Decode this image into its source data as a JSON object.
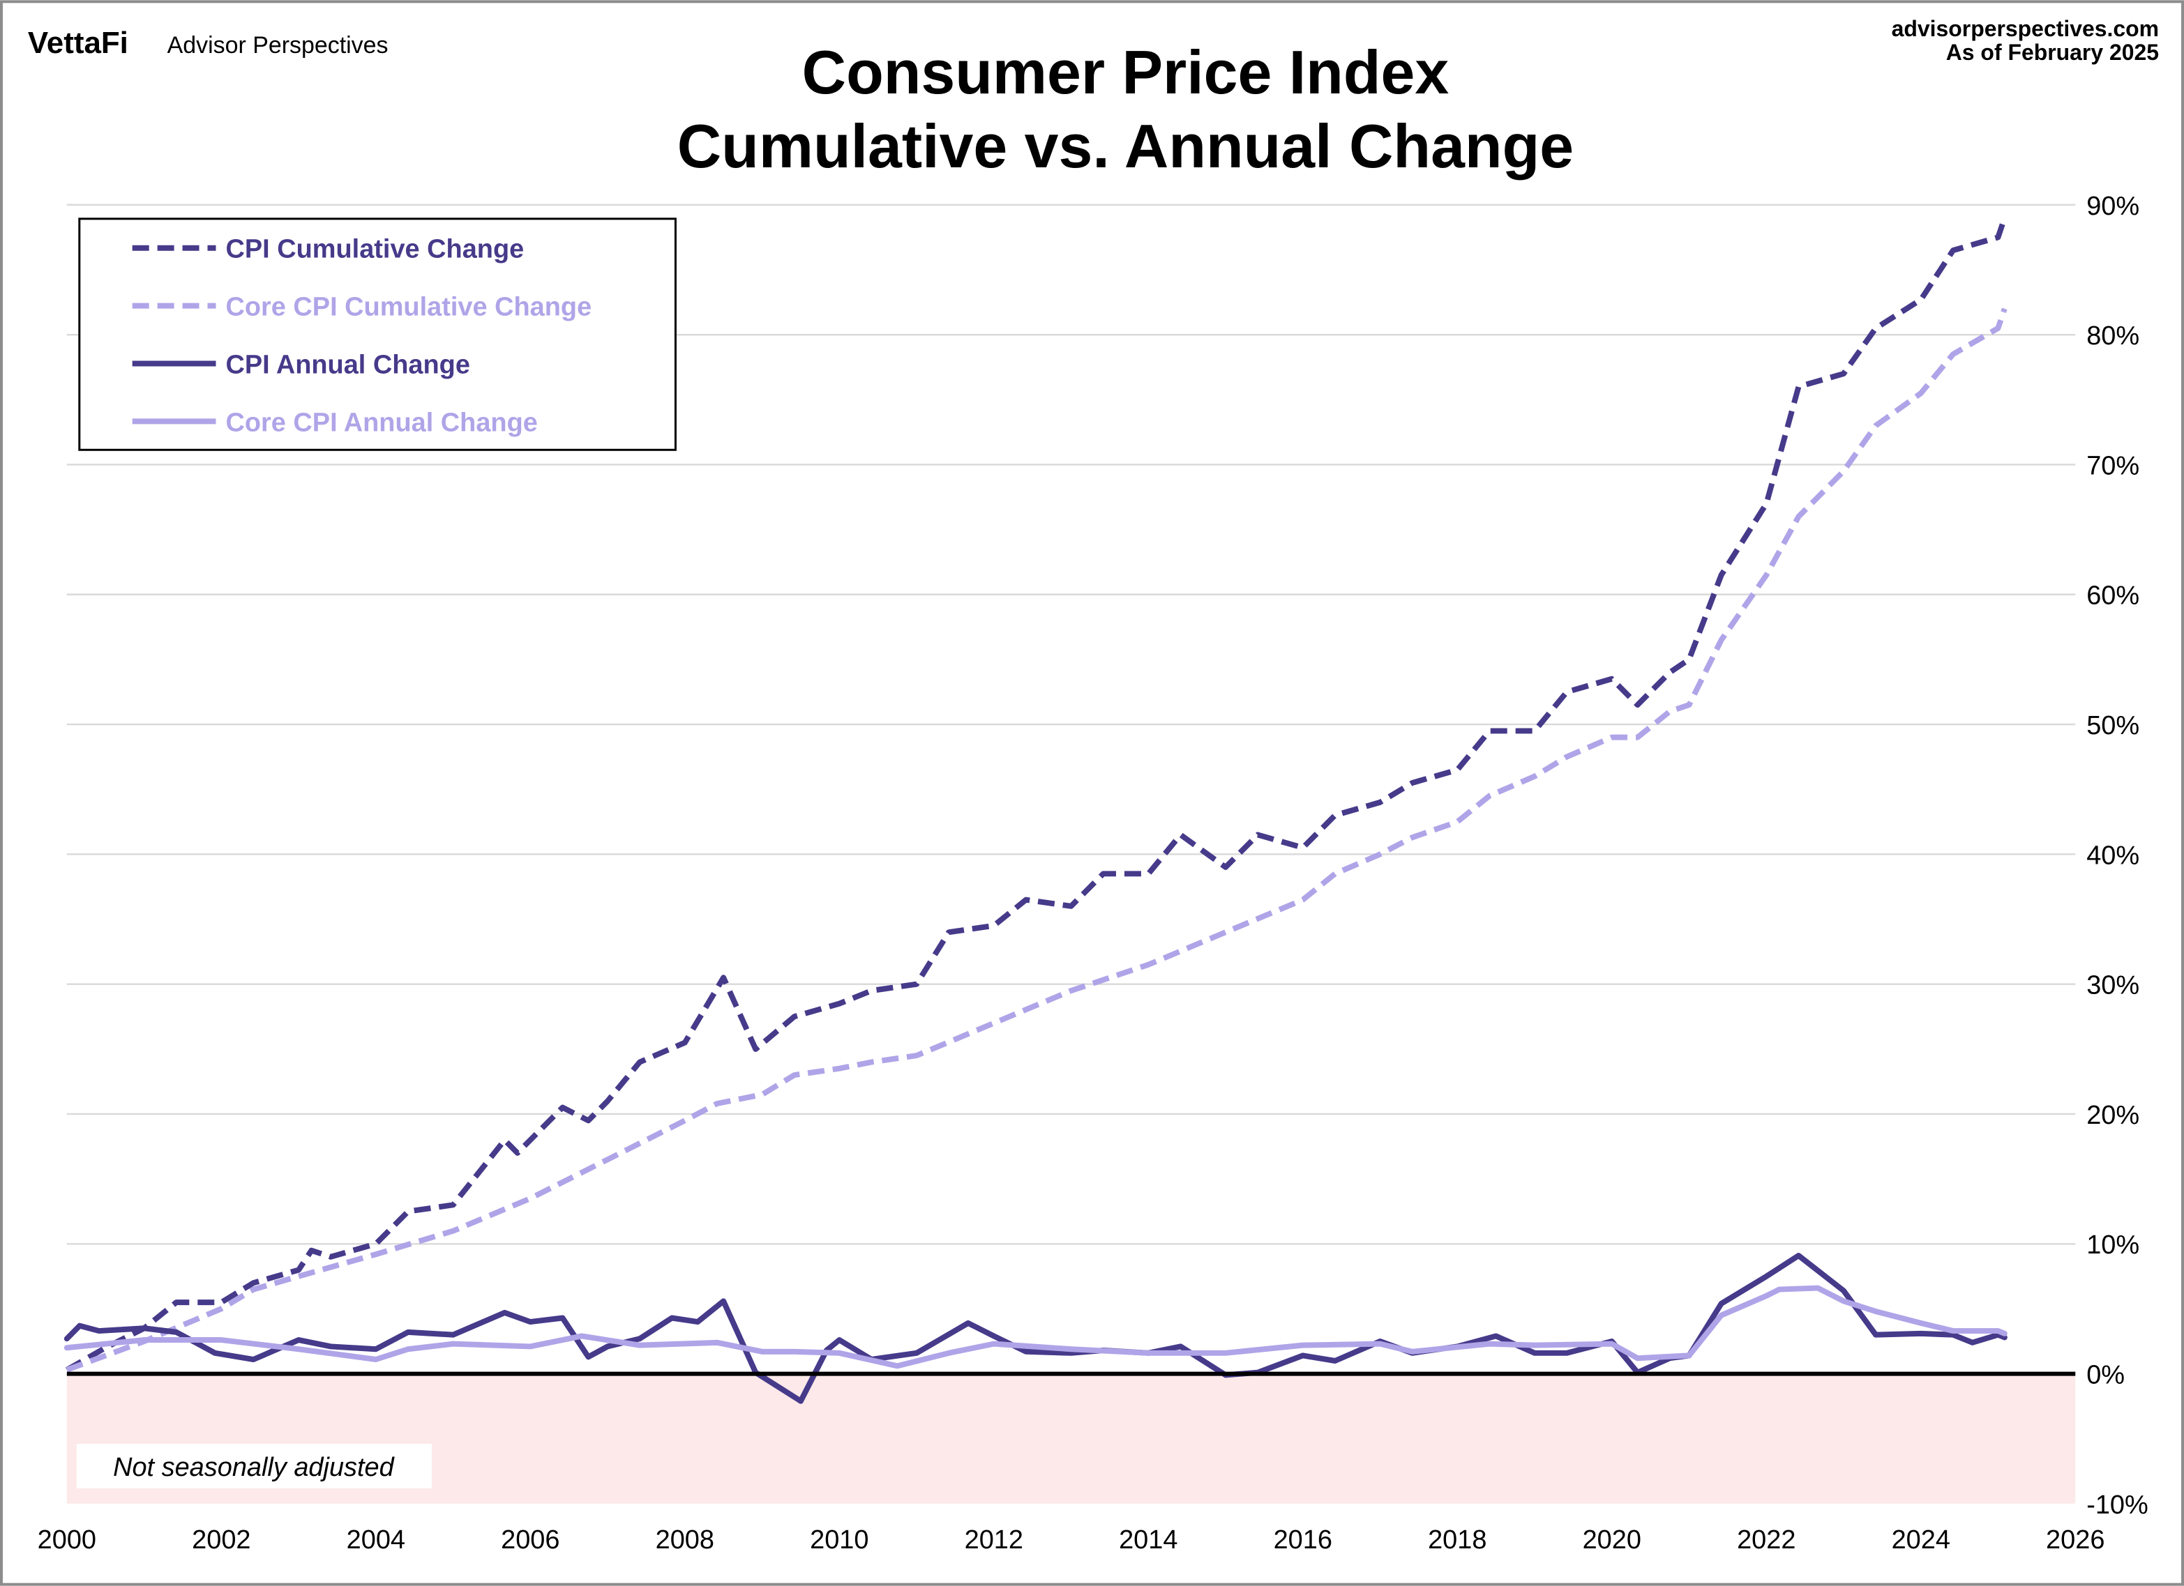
{
  "header": {
    "logo_text": "VettaFi",
    "brand": "Advisor Perspectives",
    "site": "advisorperspectives.com",
    "as_of": "As of February 2025"
  },
  "note": "Not seasonally adjusted",
  "colors": {
    "cpi": "#463a8a",
    "core": "#b0a4e8",
    "negative_band": "#fde9e9",
    "grid": "#d9d9d9"
  },
  "chart_data": {
    "type": "line",
    "title": [
      "Consumer Price Index",
      "Cumulative vs. Annual Change"
    ],
    "xlim": [
      2000,
      2026
    ],
    "ylim": [
      -10,
      90
    ],
    "x_ticks": [
      "2000",
      "2002",
      "2004",
      "2006",
      "2008",
      "2010",
      "2012",
      "2014",
      "2016",
      "2018",
      "2020",
      "2022",
      "2024",
      "2026"
    ],
    "y_ticks": [
      "90%",
      "80%",
      "70%",
      "60%",
      "50%",
      "40%",
      "30%",
      "20%",
      "10%",
      "0%",
      "-10%"
    ],
    "y_axis_side": "right",
    "grid": true,
    "legend_placement": "top-left",
    "series": [
      {
        "name": "CPI Cumulative Change",
        "style": "dashed",
        "color": "#463a8a",
        "points": [
          [
            "2000-01",
            0.3
          ],
          [
            "2000-07",
            2
          ],
          [
            "2001-01",
            3.5
          ],
          [
            "2001-06",
            5.5
          ],
          [
            "2002-01",
            5.5
          ],
          [
            "2002-06",
            7
          ],
          [
            "2003-01",
            8
          ],
          [
            "2003-03",
            9.5
          ],
          [
            "2003-06",
            9
          ],
          [
            "2004-01",
            10
          ],
          [
            "2004-06",
            12.5
          ],
          [
            "2005-01",
            13
          ],
          [
            "2005-09",
            18
          ],
          [
            "2005-11",
            17
          ],
          [
            "2006-06",
            20.5
          ],
          [
            "2006-10",
            19.5
          ],
          [
            "2007-01",
            21
          ],
          [
            "2007-06",
            24
          ],
          [
            "2008-01",
            25.5
          ],
          [
            "2008-07",
            30.5
          ],
          [
            "2008-12",
            25
          ],
          [
            "2009-06",
            27.5
          ],
          [
            "2010-01",
            28.5
          ],
          [
            "2010-06",
            29.5
          ],
          [
            "2011-01",
            30
          ],
          [
            "2011-06",
            34
          ],
          [
            "2012-01",
            34.5
          ],
          [
            "2012-06",
            36.5
          ],
          [
            "2013-01",
            36
          ],
          [
            "2013-06",
            38.5
          ],
          [
            "2014-01",
            38.5
          ],
          [
            "2014-06",
            41.5
          ],
          [
            "2015-01",
            39
          ],
          [
            "2015-06",
            41.5
          ],
          [
            "2016-01",
            40.5
          ],
          [
            "2016-06",
            43
          ],
          [
            "2017-01",
            44
          ],
          [
            "2017-06",
            45.5
          ],
          [
            "2018-01",
            46.5
          ],
          [
            "2018-06",
            49.5
          ],
          [
            "2019-01",
            49.5
          ],
          [
            "2019-06",
            52.5
          ],
          [
            "2020-01",
            53.5
          ],
          [
            "2020-05",
            51.5
          ],
          [
            "2020-10",
            54
          ],
          [
            "2021-01",
            55
          ],
          [
            "2021-06",
            61.5
          ],
          [
            "2022-01",
            67
          ],
          [
            "2022-06",
            76
          ],
          [
            "2023-01",
            77
          ],
          [
            "2023-06",
            80.5
          ],
          [
            "2024-01",
            82.7
          ],
          [
            "2024-06",
            86.5
          ],
          [
            "2025-01",
            87.5
          ],
          [
            "2025-02",
            89
          ]
        ]
      },
      {
        "name": "Core CPI Cumulative Change",
        "style": "dashed",
        "color": "#b0a4e8",
        "points": [
          [
            "2000-01",
            0.3
          ],
          [
            "2001-01",
            2.5
          ],
          [
            "2002-01",
            5
          ],
          [
            "2002-06",
            6.5
          ],
          [
            "2003-01",
            7.5
          ],
          [
            "2004-01",
            9.2
          ],
          [
            "2005-01",
            11
          ],
          [
            "2006-01",
            13.5
          ],
          [
            "2007-01",
            16.5
          ],
          [
            "2008-01",
            19.5
          ],
          [
            "2008-06",
            20.8
          ],
          [
            "2009-01",
            21.5
          ],
          [
            "2009-06",
            23
          ],
          [
            "2010-01",
            23.5
          ],
          [
            "2010-06",
            24
          ],
          [
            "2011-01",
            24.5
          ],
          [
            "2012-01",
            27
          ],
          [
            "2013-01",
            29.5
          ],
          [
            "2014-01",
            31.5
          ],
          [
            "2015-01",
            34
          ],
          [
            "2016-01",
            36.5
          ],
          [
            "2016-06",
            38.5
          ],
          [
            "2017-01",
            40
          ],
          [
            "2017-06",
            41.3
          ],
          [
            "2018-01",
            42.5
          ],
          [
            "2018-06",
            44.5
          ],
          [
            "2019-01",
            46
          ],
          [
            "2019-06",
            47.5
          ],
          [
            "2020-01",
            49
          ],
          [
            "2020-05",
            49
          ],
          [
            "2020-10",
            51
          ],
          [
            "2021-01",
            51.5
          ],
          [
            "2021-06",
            56.5
          ],
          [
            "2022-01",
            61.5
          ],
          [
            "2022-06",
            66
          ],
          [
            "2023-01",
            69.5
          ],
          [
            "2023-06",
            73
          ],
          [
            "2024-01",
            75.5
          ],
          [
            "2024-06",
            78.5
          ],
          [
            "2025-01",
            80.5
          ],
          [
            "2025-02",
            82
          ]
        ]
      },
      {
        "name": "CPI Annual Change",
        "style": "solid",
        "color": "#463a8a",
        "points": [
          [
            "2000-01",
            2.7
          ],
          [
            "2000-03",
            3.7
          ],
          [
            "2000-06",
            3.3
          ],
          [
            "2001-01",
            3.5
          ],
          [
            "2001-06",
            3.2
          ],
          [
            "2001-12",
            1.6
          ],
          [
            "2002-06",
            1.1
          ],
          [
            "2003-01",
            2.6
          ],
          [
            "2003-06",
            2.1
          ],
          [
            "2004-01",
            1.9
          ],
          [
            "2004-06",
            3.2
          ],
          [
            "2005-01",
            3.0
          ],
          [
            "2005-09",
            4.7
          ],
          [
            "2006-01",
            4.0
          ],
          [
            "2006-06",
            4.3
          ],
          [
            "2006-10",
            1.3
          ],
          [
            "2007-01",
            2.1
          ],
          [
            "2007-06",
            2.7
          ],
          [
            "2007-11",
            4.3
          ],
          [
            "2008-03",
            4.0
          ],
          [
            "2008-07",
            5.6
          ],
          [
            "2008-12",
            0.1
          ],
          [
            "2009-07",
            -2.1
          ],
          [
            "2009-11",
            1.8
          ],
          [
            "2010-01",
            2.6
          ],
          [
            "2010-06",
            1.1
          ],
          [
            "2011-01",
            1.6
          ],
          [
            "2011-09",
            3.9
          ],
          [
            "2012-01",
            2.9
          ],
          [
            "2012-06",
            1.7
          ],
          [
            "2013-01",
            1.6
          ],
          [
            "2013-06",
            1.8
          ],
          [
            "2014-01",
            1.6
          ],
          [
            "2014-06",
            2.1
          ],
          [
            "2015-01",
            -0.1
          ],
          [
            "2015-06",
            0.1
          ],
          [
            "2016-01",
            1.4
          ],
          [
            "2016-06",
            1.0
          ],
          [
            "2017-01",
            2.5
          ],
          [
            "2017-06",
            1.6
          ],
          [
            "2018-01",
            2.1
          ],
          [
            "2018-07",
            2.9
          ],
          [
            "2019-01",
            1.6
          ],
          [
            "2019-06",
            1.6
          ],
          [
            "2020-01",
            2.5
          ],
          [
            "2020-05",
            0.1
          ],
          [
            "2020-10",
            1.2
          ],
          [
            "2021-01",
            1.4
          ],
          [
            "2021-06",
            5.4
          ],
          [
            "2022-01",
            7.5
          ],
          [
            "2022-06",
            9.1
          ],
          [
            "2023-01",
            6.4
          ],
          [
            "2023-06",
            3.0
          ],
          [
            "2024-01",
            3.1
          ],
          [
            "2024-06",
            3.0
          ],
          [
            "2024-09",
            2.4
          ],
          [
            "2025-01",
            3.0
          ],
          [
            "2025-02",
            2.8
          ]
        ]
      },
      {
        "name": "Core CPI Annual Change",
        "style": "solid",
        "color": "#b0a4e8",
        "points": [
          [
            "2000-01",
            2.0
          ],
          [
            "2001-01",
            2.6
          ],
          [
            "2002-01",
            2.6
          ],
          [
            "2003-01",
            1.9
          ],
          [
            "2004-01",
            1.1
          ],
          [
            "2004-06",
            1.9
          ],
          [
            "2005-01",
            2.3
          ],
          [
            "2006-01",
            2.1
          ],
          [
            "2006-09",
            2.9
          ],
          [
            "2007-06",
            2.2
          ],
          [
            "2008-06",
            2.4
          ],
          [
            "2009-01",
            1.7
          ],
          [
            "2009-06",
            1.7
          ],
          [
            "2010-01",
            1.6
          ],
          [
            "2010-10",
            0.6
          ],
          [
            "2011-06",
            1.6
          ],
          [
            "2012-01",
            2.3
          ],
          [
            "2013-01",
            1.9
          ],
          [
            "2014-01",
            1.6
          ],
          [
            "2015-01",
            1.6
          ],
          [
            "2016-01",
            2.2
          ],
          [
            "2017-01",
            2.3
          ],
          [
            "2017-06",
            1.7
          ],
          [
            "2018-06",
            2.3
          ],
          [
            "2019-01",
            2.2
          ],
          [
            "2020-01",
            2.3
          ],
          [
            "2020-05",
            1.2
          ],
          [
            "2021-01",
            1.4
          ],
          [
            "2021-06",
            4.5
          ],
          [
            "2022-01",
            6.0
          ],
          [
            "2022-03",
            6.5
          ],
          [
            "2022-09",
            6.6
          ],
          [
            "2023-01",
            5.6
          ],
          [
            "2023-06",
            4.8
          ],
          [
            "2024-01",
            3.9
          ],
          [
            "2024-06",
            3.3
          ],
          [
            "2025-01",
            3.3
          ],
          [
            "2025-02",
            3.1
          ]
        ]
      }
    ]
  }
}
